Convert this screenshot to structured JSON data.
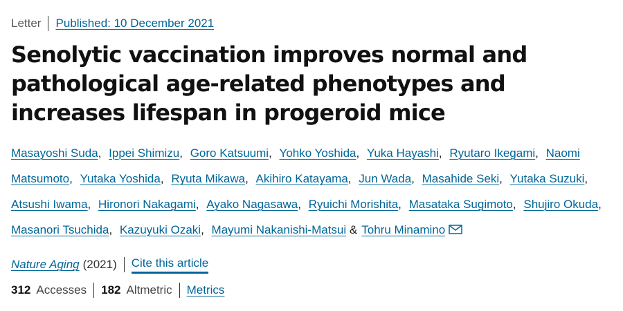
{
  "article": {
    "type": "Letter",
    "published": "Published: 10 December 2021",
    "title": "Senolytic vaccination improves normal and pathological age-related phenotypes and increases lifespan in progeroid mice",
    "authors": [
      "Masayoshi Suda",
      "Ippei Shimizu",
      "Goro Katsuumi",
      "Yohko Yoshida",
      "Yuka Hayashi",
      "Ryutaro Ikegami",
      "Naomi Matsumoto",
      "Yutaka Yoshida",
      "Ryuta Mikawa",
      "Akihiro Katayama",
      "Jun Wada",
      "Masahide Seki",
      "Yutaka Suzuki",
      "Atsushi Iwama",
      "Hironori Nakagami",
      "Ayako Nagasawa",
      "Ryuichi Morishita",
      "Masataka Sugimoto",
      "Shujiro Okuda",
      "Masanori Tsuchida",
      "Kazuyuki Ozaki",
      "Mayumi Nakanishi-Matsui",
      "Tohru Minamino"
    ],
    "author_separator": ",",
    "author_final_separator": "&",
    "contact_icon": "envelope-icon",
    "journal": "Nature Aging",
    "year": "(2021)",
    "cite_label": "Cite this article",
    "accesses_count": "312",
    "accesses_label": "Accesses",
    "altmetric_count": "182",
    "altmetric_label": "Altmetric",
    "metrics_label": "Metrics"
  }
}
